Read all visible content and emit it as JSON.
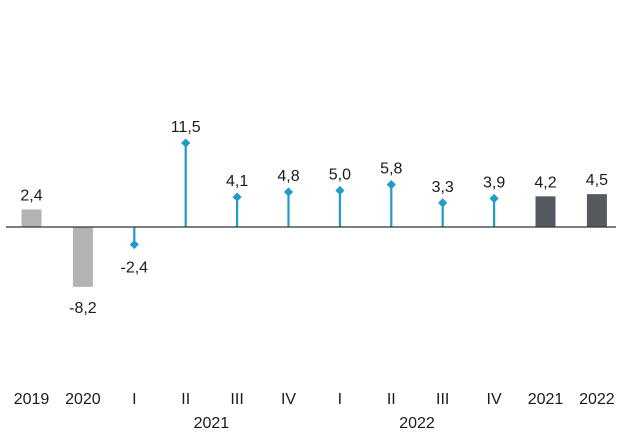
{
  "chart_data": {
    "type": "bar",
    "categories": [
      "2019",
      "2020",
      "I",
      "II",
      "III",
      "IV",
      "I",
      "II",
      "III",
      "IV",
      "2021",
      "2022"
    ],
    "values": [
      2.4,
      -8.2,
      -2.4,
      11.5,
      4.1,
      4.8,
      5.0,
      5.8,
      3.3,
      3.9,
      4.2,
      4.5
    ],
    "value_labels": [
      "2,4",
      "-8,2",
      "-2,4",
      "11,5",
      "4,1",
      "4,8",
      "5,0",
      "5,8",
      "3,3",
      "3,9",
      "4,2",
      "4,5"
    ],
    "mark_styles": [
      "bar-light",
      "bar-light",
      "lollipop",
      "lollipop",
      "lollipop",
      "lollipop",
      "lollipop",
      "lollipop",
      "lollipop",
      "lollipop",
      "bar-dark",
      "bar-dark"
    ],
    "group_labels": [
      {
        "label": "2021",
        "from": 2,
        "to": 5
      },
      {
        "label": "2022",
        "from": 6,
        "to": 9
      }
    ],
    "colors": {
      "bar_light": "#b3b3b3",
      "bar_dark": "#555a60",
      "lollipop": "#1f9cc9",
      "axis": "#333333",
      "text": "#1a1a1a"
    },
    "grid": false,
    "legend": "none",
    "title": "",
    "xlabel": "",
    "ylabel": ""
  }
}
